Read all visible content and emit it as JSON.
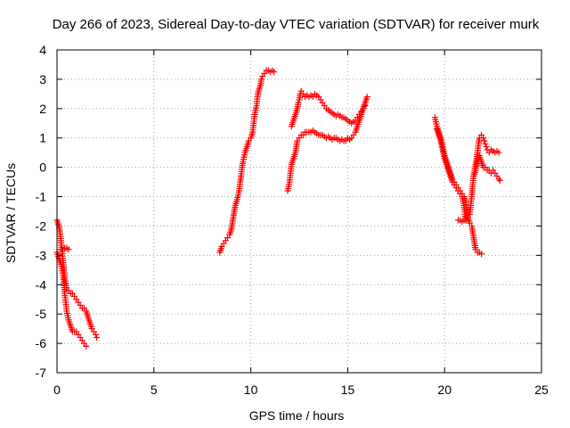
{
  "chart_data": {
    "type": "scatter",
    "title": "Day 266 of 2023, Sidereal Day-to-day VTEC variation (SDTVAR) for receiver murk",
    "xlabel": "GPS time / hours",
    "ylabel": "SDTVAR / TECUs",
    "xlim": [
      0,
      25
    ],
    "ylim": [
      -7,
      4
    ],
    "xticks": [
      0,
      5,
      10,
      15,
      20,
      25
    ],
    "yticks": [
      -7,
      -6,
      -5,
      -4,
      -3,
      -2,
      -1,
      0,
      1,
      2,
      3,
      4
    ],
    "grid": true,
    "marker": "+",
    "color": "#ff0000",
    "segments": [
      [
        [
          0.0,
          -2.9
        ],
        [
          0.1,
          -3.1
        ],
        [
          0.2,
          -3.3
        ],
        [
          0.3,
          -3.6
        ],
        [
          0.35,
          -3.9
        ],
        [
          0.4,
          -4.3
        ],
        [
          0.45,
          -4.6
        ],
        [
          0.5,
          -4.9
        ],
        [
          0.6,
          -5.2
        ],
        [
          0.7,
          -5.4
        ],
        [
          0.8,
          -5.6
        ],
        [
          0.9,
          -5.6
        ],
        [
          1.0,
          -5.6
        ],
        [
          1.1,
          -5.7
        ],
        [
          1.2,
          -5.8
        ],
        [
          1.3,
          -5.9
        ],
        [
          1.4,
          -6.0
        ],
        [
          1.5,
          -6.1
        ]
      ],
      [
        [
          0.0,
          -1.8
        ],
        [
          0.1,
          -2.0
        ],
        [
          0.15,
          -2.2
        ],
        [
          0.2,
          -2.5
        ],
        [
          0.25,
          -2.8
        ],
        [
          0.3,
          -3.1
        ],
        [
          0.35,
          -3.4
        ],
        [
          0.4,
          -3.8
        ],
        [
          0.5,
          -4.1
        ],
        [
          0.6,
          -4.2
        ],
        [
          0.7,
          -4.3
        ],
        [
          0.8,
          -4.3
        ],
        [
          0.9,
          -4.4
        ],
        [
          1.0,
          -4.5
        ],
        [
          1.1,
          -4.6
        ],
        [
          1.2,
          -4.7
        ],
        [
          1.3,
          -4.8
        ],
        [
          1.4,
          -4.8
        ],
        [
          1.5,
          -4.9
        ],
        [
          1.6,
          -5.1
        ],
        [
          1.7,
          -5.3
        ],
        [
          1.8,
          -5.5
        ],
        [
          1.9,
          -5.6
        ],
        [
          2.0,
          -5.7
        ],
        [
          2.05,
          -5.8
        ]
      ],
      [
        [
          0.2,
          -2.8
        ],
        [
          0.3,
          -2.8
        ],
        [
          0.4,
          -2.75
        ],
        [
          0.5,
          -2.75
        ],
        [
          0.6,
          -2.8
        ]
      ],
      [
        [
          8.4,
          -2.9
        ],
        [
          8.5,
          -2.7
        ],
        [
          8.6,
          -2.6
        ],
        [
          8.7,
          -2.5
        ],
        [
          8.8,
          -2.4
        ],
        [
          8.9,
          -2.3
        ],
        [
          9.0,
          -2.1
        ],
        [
          9.05,
          -1.9
        ],
        [
          9.1,
          -1.7
        ],
        [
          9.15,
          -1.5
        ],
        [
          9.2,
          -1.3
        ],
        [
          9.3,
          -1.1
        ],
        [
          9.4,
          -0.8
        ],
        [
          9.45,
          -0.5
        ],
        [
          9.5,
          -0.3
        ],
        [
          9.55,
          0.0
        ],
        [
          9.6,
          0.2
        ],
        [
          9.7,
          0.5
        ],
        [
          9.8,
          0.7
        ],
        [
          9.9,
          0.9
        ],
        [
          10.0,
          1.0
        ],
        [
          10.1,
          1.2
        ],
        [
          10.15,
          1.5
        ],
        [
          10.2,
          1.8
        ],
        [
          10.3,
          2.1
        ],
        [
          10.35,
          2.4
        ],
        [
          10.4,
          2.6
        ],
        [
          10.5,
          2.8
        ],
        [
          10.55,
          3.0
        ],
        [
          10.6,
          3.1
        ],
        [
          10.7,
          3.2
        ],
        [
          10.8,
          3.3
        ],
        [
          10.9,
          3.3
        ],
        [
          11.0,
          3.25
        ],
        [
          11.1,
          3.3
        ],
        [
          11.2,
          3.25
        ]
      ],
      [
        [
          11.9,
          -0.8
        ],
        [
          12.0,
          -0.5
        ],
        [
          12.05,
          -0.2
        ],
        [
          12.1,
          0.1
        ],
        [
          12.2,
          0.3
        ],
        [
          12.3,
          0.5
        ],
        [
          12.35,
          0.7
        ],
        [
          12.4,
          0.9
        ],
        [
          12.5,
          1.0
        ],
        [
          12.6,
          1.1
        ],
        [
          12.7,
          1.1
        ],
        [
          12.8,
          1.2
        ],
        [
          12.9,
          1.2
        ],
        [
          13.0,
          1.2
        ],
        [
          13.1,
          1.2
        ],
        [
          13.2,
          1.25
        ],
        [
          13.3,
          1.2
        ],
        [
          13.4,
          1.15
        ],
        [
          13.5,
          1.1
        ],
        [
          13.6,
          1.1
        ],
        [
          13.7,
          1.1
        ],
        [
          13.8,
          1.05
        ],
        [
          13.9,
          1.0
        ],
        [
          14.0,
          1.05
        ],
        [
          14.1,
          1.0
        ],
        [
          14.2,
          0.95
        ],
        [
          14.3,
          1.0
        ],
        [
          14.4,
          1.0
        ],
        [
          14.5,
          0.95
        ],
        [
          14.6,
          0.9
        ],
        [
          14.7,
          0.95
        ],
        [
          14.8,
          0.9
        ],
        [
          14.9,
          0.9
        ],
        [
          15.0,
          1.0
        ],
        [
          15.1,
          0.95
        ],
        [
          15.2,
          1.0
        ],
        [
          15.3,
          1.1
        ],
        [
          15.4,
          1.2
        ],
        [
          15.5,
          1.4
        ],
        [
          15.6,
          1.6
        ],
        [
          15.7,
          1.8
        ],
        [
          15.8,
          2.0
        ],
        [
          15.9,
          2.2
        ],
        [
          16.0,
          2.4
        ]
      ],
      [
        [
          12.1,
          1.4
        ],
        [
          12.2,
          1.6
        ],
        [
          12.3,
          1.8
        ],
        [
          12.4,
          2.0
        ],
        [
          12.45,
          2.2
        ],
        [
          12.5,
          2.3
        ],
        [
          12.55,
          2.5
        ],
        [
          12.6,
          2.6
        ],
        [
          12.7,
          2.5
        ],
        [
          12.8,
          2.4
        ],
        [
          12.9,
          2.45
        ],
        [
          13.0,
          2.4
        ],
        [
          13.1,
          2.45
        ],
        [
          13.2,
          2.4
        ],
        [
          13.3,
          2.5
        ],
        [
          13.4,
          2.45
        ],
        [
          13.5,
          2.4
        ],
        [
          13.6,
          2.3
        ],
        [
          13.7,
          2.2
        ],
        [
          13.8,
          2.1
        ],
        [
          13.9,
          2.0
        ],
        [
          14.0,
          1.95
        ],
        [
          14.1,
          1.9
        ],
        [
          14.2,
          1.85
        ],
        [
          14.3,
          1.8
        ],
        [
          14.4,
          1.75
        ],
        [
          14.5,
          1.8
        ],
        [
          14.6,
          1.75
        ],
        [
          14.7,
          1.7
        ],
        [
          14.8,
          1.7
        ],
        [
          14.9,
          1.65
        ],
        [
          15.0,
          1.6
        ],
        [
          15.1,
          1.55
        ],
        [
          15.2,
          1.5
        ],
        [
          15.3,
          1.55
        ],
        [
          15.4,
          1.6
        ],
        [
          15.5,
          1.7
        ],
        [
          15.6,
          1.8
        ],
        [
          15.7,
          1.9
        ],
        [
          15.8,
          2.0
        ],
        [
          15.9,
          2.1
        ]
      ],
      [
        [
          19.5,
          1.7
        ],
        [
          19.6,
          1.4
        ],
        [
          19.7,
          1.2
        ],
        [
          19.8,
          1.0
        ],
        [
          19.9,
          0.7
        ],
        [
          20.0,
          0.4
        ],
        [
          20.1,
          0.2
        ],
        [
          20.2,
          0.0
        ],
        [
          20.3,
          -0.2
        ],
        [
          20.4,
          -0.4
        ],
        [
          20.5,
          -0.5
        ],
        [
          20.6,
          -0.6
        ],
        [
          20.7,
          -0.7
        ],
        [
          20.8,
          -0.8
        ],
        [
          20.9,
          -0.9
        ],
        [
          21.0,
          -1.0
        ],
        [
          21.1,
          -1.2
        ],
        [
          21.15,
          -1.5
        ],
        [
          21.2,
          -1.7
        ],
        [
          21.3,
          -1.9
        ],
        [
          21.4,
          -2.0
        ],
        [
          21.45,
          -2.2
        ],
        [
          21.5,
          -2.4
        ],
        [
          21.55,
          -2.6
        ],
        [
          21.6,
          -2.8
        ],
        [
          21.7,
          -2.9
        ],
        [
          21.8,
          -2.9
        ],
        [
          21.9,
          -2.95
        ]
      ],
      [
        [
          19.6,
          1.3
        ],
        [
          19.7,
          1.1
        ],
        [
          19.8,
          0.9
        ],
        [
          19.9,
          0.6
        ],
        [
          20.0,
          0.3
        ],
        [
          20.1,
          0.1
        ],
        [
          20.2,
          -0.1
        ],
        [
          20.3,
          -0.3
        ],
        [
          20.4,
          -0.5
        ],
        [
          20.5,
          -0.6
        ],
        [
          20.6,
          -0.7
        ],
        [
          20.7,
          -0.8
        ],
        [
          20.8,
          -0.9
        ],
        [
          20.9,
          -1.0
        ],
        [
          21.0,
          -1.3
        ],
        [
          21.05,
          -1.6
        ],
        [
          21.1,
          -1.8
        ],
        [
          21.2,
          -1.7
        ],
        [
          21.3,
          -1.6
        ],
        [
          21.35,
          -1.3
        ],
        [
          21.4,
          -1.0
        ],
        [
          21.45,
          -0.6
        ],
        [
          21.5,
          -0.3
        ],
        [
          21.6,
          -0.1
        ],
        [
          21.7,
          0.2
        ],
        [
          21.8,
          0.4
        ],
        [
          21.9,
          0.2
        ],
        [
          22.0,
          0.0
        ],
        [
          22.1,
          0.0
        ],
        [
          22.2,
          -0.1
        ],
        [
          22.3,
          -0.1
        ],
        [
          22.4,
          -0.2
        ],
        [
          22.5,
          -0.1
        ],
        [
          22.6,
          -0.2
        ],
        [
          22.7,
          -0.3
        ],
        [
          22.8,
          -0.4
        ],
        [
          22.85,
          -0.45
        ]
      ],
      [
        [
          20.7,
          -1.8
        ],
        [
          20.8,
          -1.8
        ],
        [
          20.9,
          -1.85
        ],
        [
          21.0,
          -1.8
        ],
        [
          21.1,
          -1.8
        ]
      ],
      [
        [
          21.5,
          -0.3
        ],
        [
          21.6,
          0.1
        ],
        [
          21.7,
          0.5
        ],
        [
          21.75,
          0.8
        ],
        [
          21.8,
          1.0
        ],
        [
          21.9,
          1.1
        ],
        [
          22.0,
          1.0
        ],
        [
          22.05,
          0.9
        ],
        [
          22.1,
          0.8
        ],
        [
          22.15,
          0.7
        ],
        [
          22.2,
          0.6
        ],
        [
          22.3,
          0.5
        ],
        [
          22.4,
          0.6
        ],
        [
          22.5,
          0.55
        ],
        [
          22.6,
          0.5
        ],
        [
          22.7,
          0.55
        ],
        [
          22.8,
          0.5
        ]
      ]
    ]
  }
}
